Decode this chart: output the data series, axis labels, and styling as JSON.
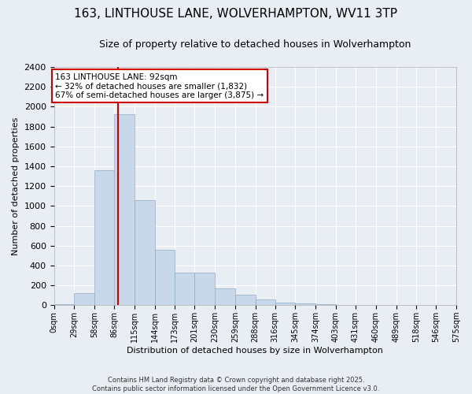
{
  "title": "163, LINTHOUSE LANE, WOLVERHAMPTON, WV11 3TP",
  "subtitle": "Size of property relative to detached houses in Wolverhampton",
  "xlabel": "Distribution of detached houses by size in Wolverhampton",
  "ylabel": "Number of detached properties",
  "bar_color": "#c8d8ea",
  "bar_edge_color": "#8aacc8",
  "background_color": "#e8eef4",
  "grid_color": "#ffffff",
  "annotation_text": "163 LINTHOUSE LANE: 92sqm\n← 32% of detached houses are smaller (1,832)\n67% of semi-detached houses are larger (3,875) →",
  "vline_x": 92,
  "vline_color": "#cc0000",
  "ylim": [
    0,
    2400
  ],
  "yticks": [
    0,
    200,
    400,
    600,
    800,
    1000,
    1200,
    1400,
    1600,
    1800,
    2000,
    2200,
    2400
  ],
  "bin_edges": [
    0,
    29,
    58,
    86,
    115,
    144,
    173,
    201,
    230,
    259,
    288,
    316,
    345,
    374,
    403,
    431,
    460,
    489,
    518,
    546,
    575
  ],
  "bin_labels": [
    "0sqm",
    "29sqm",
    "58sqm",
    "86sqm",
    "115sqm",
    "144sqm",
    "173sqm",
    "201sqm",
    "230sqm",
    "259sqm",
    "288sqm",
    "316sqm",
    "345sqm",
    "374sqm",
    "403sqm",
    "431sqm",
    "460sqm",
    "489sqm",
    "518sqm",
    "546sqm",
    "575sqm"
  ],
  "bar_heights": [
    10,
    125,
    1360,
    1920,
    1055,
    555,
    330,
    330,
    170,
    105,
    55,
    30,
    20,
    10,
    5,
    5,
    2,
    1,
    0,
    1
  ],
  "footer": "Contains HM Land Registry data © Crown copyright and database right 2025.\nContains public sector information licensed under the Open Government Licence v3.0.",
  "annotation_box_facecolor": "#ffffff",
  "annotation_box_edgecolor": "#cc0000",
  "title_fontsize": 11,
  "subtitle_fontsize": 9,
  "ylabel_fontsize": 8,
  "xlabel_fontsize": 8,
  "ytick_fontsize": 8,
  "xtick_fontsize": 7,
  "footer_fontsize": 6
}
